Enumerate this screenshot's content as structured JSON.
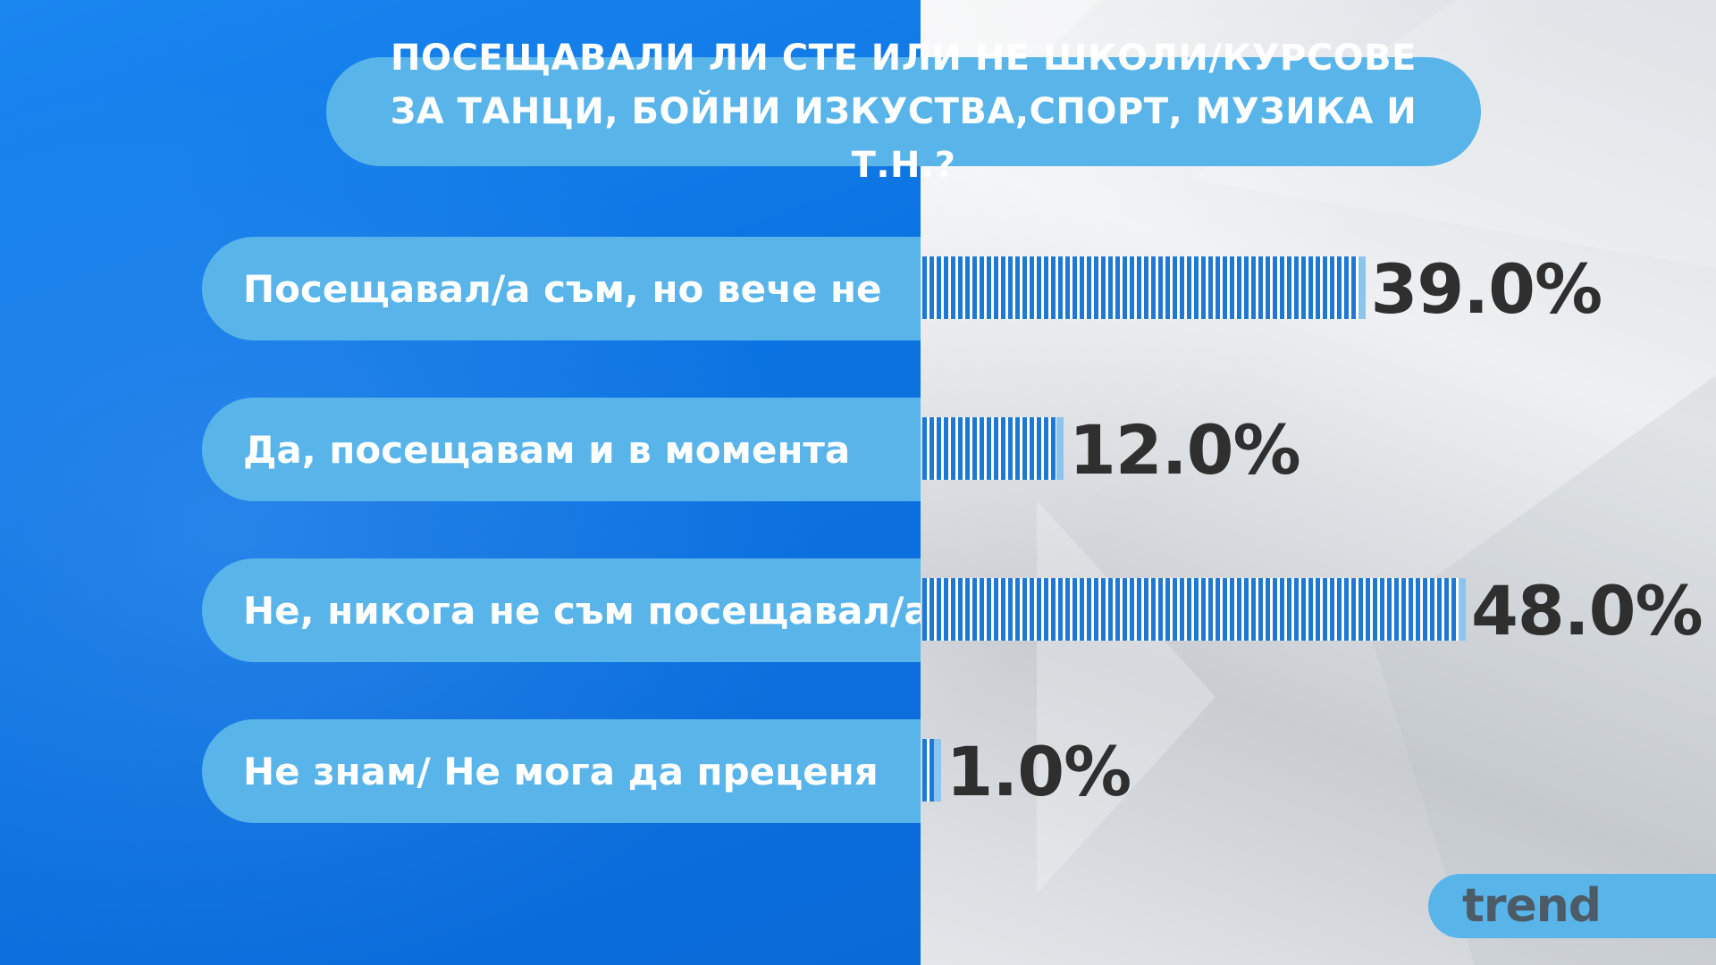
{
  "chart_data": {
    "type": "bar",
    "orientation": "horizontal",
    "title": "ПОСЕЩАВАЛИ ЛИ СТЕ ИЛИ НЕ ШКОЛИ/КУРСОВЕ ЗА ТАНЦИ, БОЙНИ ИЗКУСТВА,СПОРТ, МУЗИКА И Т.Н.?",
    "categories": [
      "Посещавал/а съм, но вече не",
      "Да, посещавам и в момента",
      "Не, никога не съм посещавал/а",
      "Не знам/ Не мога да преценя"
    ],
    "values": [
      39.0,
      12.0,
      48.0,
      1.0
    ],
    "value_labels": [
      "39.0%",
      "12.0%",
      "48.0%",
      "1.0%"
    ],
    "unit": "%",
    "xlim": [
      0,
      100
    ],
    "grid": false,
    "legend": "none"
  },
  "brand": {
    "logo_text": "trend"
  },
  "colors": {
    "pill": "#59b4ea",
    "bar": "#1e78d4",
    "left_background": "#0c74e2",
    "value_text": "#2f2f2f"
  }
}
